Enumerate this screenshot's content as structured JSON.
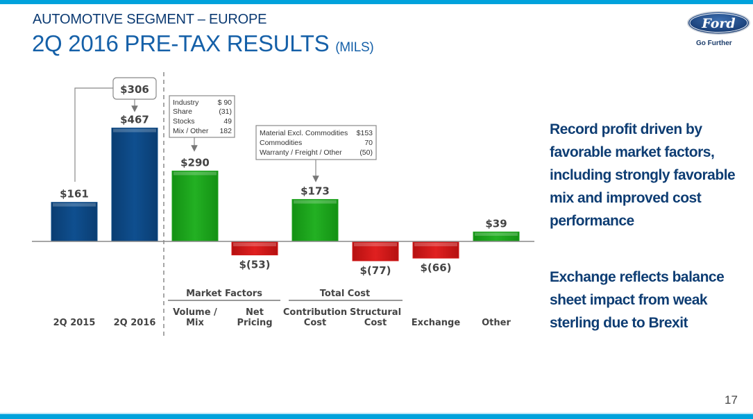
{
  "header": {
    "subtitle": "AUTOMOTIVE SEGMENT – EUROPE",
    "title": "2Q 2016 PRE-TAX RESULTS",
    "title_unit": "(MILS)"
  },
  "brand": {
    "logo_text": "Ford",
    "tagline": "Go Further",
    "accent_color": "#00a2dc",
    "logo_color": "#1b3c6a"
  },
  "commentary": [
    "Record profit driven by favorable market factors, including strongly favorable mix and improved cost performance",
    "Exchange reflects balance sheet impact from weak sterling due to Brexit"
  ],
  "page_number": "17",
  "chart_data": {
    "type": "bar",
    "subtype": "waterfall",
    "title": "2Q 2016 Pre-Tax Results (Mils)",
    "unit": "USD millions",
    "categories": [
      "2Q 2015",
      "2Q 2016",
      "Volume / Mix",
      "Net Pricing",
      "Contribution Cost",
      "Structural Cost",
      "Exchange",
      "Other"
    ],
    "values": [
      161,
      467,
      290,
      -53,
      173,
      -77,
      -66,
      39
    ],
    "value_labels": [
      "$161",
      "$467",
      "$290",
      "$(53)",
      "$173",
      "$(77)",
      "$(66)",
      "$39"
    ],
    "bar_kinds": [
      "total",
      "total",
      "increase",
      "decrease",
      "increase",
      "decrease",
      "decrease",
      "increase"
    ],
    "colors": {
      "total": "#0c4a86",
      "increase": "#1fa51f",
      "decrease": "#d41b1b"
    },
    "category_groups": [
      {
        "label": "Market Factors",
        "members": [
          "Volume / Mix",
          "Net Pricing"
        ]
      },
      {
        "label": "Total Cost",
        "members": [
          "Contribution Cost",
          "Structural Cost"
        ]
      }
    ],
    "change_callout": {
      "label": "$306",
      "from": "2Q 2015",
      "to": "2Q 2016"
    },
    "detail_boxes": [
      {
        "target": "Volume / Mix",
        "rows": [
          {
            "label": "Industry",
            "value": "$ 90"
          },
          {
            "label": "Share",
            "value": "(31)"
          },
          {
            "label": "Stocks",
            "value": "49"
          },
          {
            "label": "Mix / Other",
            "value": "182"
          }
        ]
      },
      {
        "target": "Contribution Cost",
        "rows": [
          {
            "label": "Material Excl. Commodities",
            "value": "$153"
          },
          {
            "label": "Commodities",
            "value": "70"
          },
          {
            "label": "Warranty / Freight / Other",
            "value": "(50)"
          }
        ]
      }
    ],
    "xlabel": "",
    "ylabel": "",
    "ylim": [
      -100,
      500
    ],
    "grid": false,
    "legend": "none"
  }
}
